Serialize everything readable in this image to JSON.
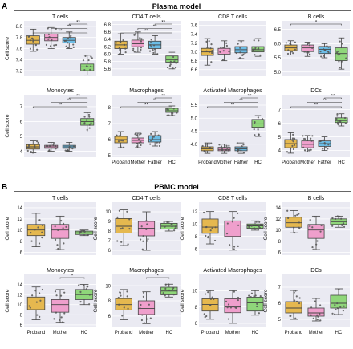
{
  "panels": [
    {
      "letter": "A",
      "title": "Plasma model"
    },
    {
      "letter": "B",
      "title": "PBMC model"
    }
  ],
  "colors": {
    "Proband": "#e5b84f",
    "Mother": "#ef9fcc",
    "Father": "#6cbde6",
    "HC": "#8fd67a",
    "panel_bg": "#eaeaf2",
    "grid": "#ffffff"
  },
  "chart_data": [
    {
      "type": "box",
      "panel": "A",
      "title": "T cells",
      "categories": [
        "Proband",
        "Mother",
        "Father",
        "HC"
      ],
      "ylabel": "Cell score",
      "ylim": [
        7.1,
        8.1
      ],
      "yticks": [
        "7.2",
        "7.4",
        "7.6",
        "7.8",
        "8.0"
      ],
      "show_xticklabels": false,
      "boxes": [
        {
          "category": "Proband",
          "min": 7.55,
          "q1": 7.68,
          "median": 7.75,
          "q3": 7.83,
          "max": 7.95
        },
        {
          "category": "Mother",
          "min": 7.6,
          "q1": 7.74,
          "median": 7.8,
          "q3": 7.86,
          "max": 7.98
        },
        {
          "category": "Father",
          "min": 7.6,
          "q1": 7.7,
          "median": 7.75,
          "q3": 7.8,
          "max": 7.9
        },
        {
          "category": "HC",
          "min": 7.12,
          "q1": 7.2,
          "median": 7.27,
          "q3": 7.32,
          "max": 7.48
        }
      ],
      "significance": [
        {
          "from": "Proband",
          "to": "HC",
          "label": "**"
        },
        {
          "from": "Mother",
          "to": "HC",
          "label": "**"
        },
        {
          "from": "Father",
          "to": "HC",
          "label": "**"
        }
      ]
    },
    {
      "type": "box",
      "panel": "A",
      "title": "CD4 T cells",
      "categories": [
        "Proband",
        "Mother",
        "Father",
        "HC"
      ],
      "ylabel": "",
      "ylim": [
        5.4,
        6.9
      ],
      "yticks": [
        "5.6",
        "5.8",
        "6.0",
        "6.2",
        "6.4",
        "6.6",
        "6.8"
      ],
      "show_xticklabels": false,
      "boxes": [
        {
          "category": "Proband",
          "min": 6.0,
          "q1": 6.15,
          "median": 6.25,
          "q3": 6.35,
          "max": 6.55
        },
        {
          "category": "Mother",
          "min": 6.05,
          "q1": 6.2,
          "median": 6.28,
          "q3": 6.38,
          "max": 6.6
        },
        {
          "category": "Father",
          "min": 6.0,
          "q1": 6.15,
          "median": 6.25,
          "q3": 6.35,
          "max": 6.5
        },
        {
          "category": "HC",
          "min": 5.6,
          "q1": 5.78,
          "median": 5.85,
          "q3": 5.95,
          "max": 6.05
        }
      ],
      "significance": [
        {
          "from": "Proband",
          "to": "HC",
          "label": "**"
        },
        {
          "from": "Mother",
          "to": "HC",
          "label": "**"
        },
        {
          "from": "Father",
          "to": "HC",
          "label": "**"
        }
      ]
    },
    {
      "type": "box",
      "panel": "A",
      "title": "CD8 T cells",
      "categories": [
        "Proband",
        "Mother",
        "Father",
        "HC"
      ],
      "ylabel": "",
      "ylim": [
        6.45,
        7.7
      ],
      "yticks": [
        "6.6",
        "6.8",
        "7.0",
        "7.2",
        "7.4",
        "7.6"
      ],
      "show_xticklabels": false,
      "boxes": [
        {
          "category": "Proband",
          "min": 6.7,
          "q1": 6.92,
          "median": 7.0,
          "q3": 7.08,
          "max": 7.3
        },
        {
          "category": "Mother",
          "min": 6.8,
          "q1": 6.95,
          "median": 7.02,
          "q3": 7.08,
          "max": 7.25
        },
        {
          "category": "Father",
          "min": 6.85,
          "q1": 6.98,
          "median": 7.05,
          "q3": 7.12,
          "max": 7.25
        },
        {
          "category": "HC",
          "min": 6.9,
          "q1": 7.0,
          "median": 7.05,
          "q3": 7.12,
          "max": 7.3
        }
      ],
      "significance": []
    },
    {
      "type": "box",
      "panel": "A",
      "title": "B cells",
      "categories": [
        "Proband",
        "Mother",
        "Father",
        "HC"
      ],
      "ylabel": "",
      "ylim": [
        4.85,
        6.8
      ],
      "yticks": [
        "5.0",
        "5.5",
        "6.0",
        "6.5"
      ],
      "show_xticklabels": false,
      "boxes": [
        {
          "category": "Proband",
          "min": 5.6,
          "q1": 5.75,
          "median": 5.85,
          "q3": 5.95,
          "max": 6.1
        },
        {
          "category": "Mother",
          "min": 5.55,
          "q1": 5.72,
          "median": 5.85,
          "q3": 5.95,
          "max": 6.05
        },
        {
          "category": "Father",
          "min": 5.5,
          "q1": 5.65,
          "median": 5.8,
          "q3": 5.9,
          "max": 6.0
        },
        {
          "category": "HC",
          "min": 5.1,
          "q1": 5.4,
          "median": 5.65,
          "q3": 5.85,
          "max": 6.2
        }
      ],
      "significance": [
        {
          "from": "Proband",
          "to": "HC",
          "label": "*"
        }
      ]
    },
    {
      "type": "box",
      "panel": "A",
      "title": "Monocytes",
      "categories": [
        "Proband",
        "Mother",
        "Father",
        "HC"
      ],
      "ylabel": "Cell score",
      "ylim": [
        3.6,
        7.8
      ],
      "yticks": [
        "4",
        "5",
        "6",
        "7"
      ],
      "show_xticklabels": false,
      "boxes": [
        {
          "category": "Proband",
          "min": 3.9,
          "q1": 4.15,
          "median": 4.3,
          "q3": 4.45,
          "max": 4.7
        },
        {
          "category": "Mother",
          "min": 4.0,
          "q1": 4.2,
          "median": 4.3,
          "q3": 4.4,
          "max": 4.6
        },
        {
          "category": "Father",
          "min": 4.0,
          "q1": 4.2,
          "median": 4.3,
          "q3": 4.4,
          "max": 4.6
        },
        {
          "category": "HC",
          "min": 5.3,
          "q1": 5.75,
          "median": 6.0,
          "q3": 6.2,
          "max": 6.6
        }
      ],
      "significance": [
        {
          "from": "Proband",
          "to": "HC",
          "label": "**"
        },
        {
          "from": "Mother",
          "to": "HC",
          "label": "**"
        },
        {
          "from": "Father",
          "to": "HC",
          "label": "**"
        }
      ]
    },
    {
      "type": "box",
      "panel": "A",
      "title": "Macrophages",
      "categories": [
        "Proband",
        "Mother",
        "Father",
        "HC"
      ],
      "ylabel": "",
      "ylim": [
        4.9,
        8.8
      ],
      "yticks": [
        "5",
        "6",
        "7",
        "8"
      ],
      "show_xticklabels": true,
      "boxes": [
        {
          "category": "Proband",
          "min": 5.5,
          "q1": 5.8,
          "median": 6.0,
          "q3": 6.2,
          "max": 6.5
        },
        {
          "category": "Mother",
          "min": 5.5,
          "q1": 5.8,
          "median": 5.95,
          "q3": 6.1,
          "max": 6.4
        },
        {
          "category": "Father",
          "min": 5.6,
          "q1": 5.85,
          "median": 6.0,
          "q3": 6.25,
          "max": 6.5
        },
        {
          "category": "HC",
          "min": 7.5,
          "q1": 7.7,
          "median": 7.8,
          "q3": 7.95,
          "max": 8.1
        }
      ],
      "significance": [
        {
          "from": "Proband",
          "to": "HC",
          "label": "**"
        },
        {
          "from": "Mother",
          "to": "HC",
          "label": "**"
        },
        {
          "from": "Father",
          "to": "HC",
          "label": "**"
        }
      ]
    },
    {
      "type": "box",
      "panel": "A",
      "title": "Activated Macrophages",
      "categories": [
        "Proband",
        "Mother",
        "Father",
        "HC"
      ],
      "ylabel": "",
      "ylim": [
        3.5,
        5.9
      ],
      "yticks": [
        "4.0",
        "4.5",
        "5.0",
        "5.5"
      ],
      "show_xticklabels": true,
      "boxes": [
        {
          "category": "Proband",
          "min": 3.65,
          "q1": 3.75,
          "median": 3.82,
          "q3": 3.9,
          "max": 4.05
        },
        {
          "category": "Mother",
          "min": 3.65,
          "q1": 3.75,
          "median": 3.8,
          "q3": 3.88,
          "max": 4.0
        },
        {
          "category": "Father",
          "min": 3.65,
          "q1": 3.75,
          "median": 3.82,
          "q3": 3.9,
          "max": 4.05
        },
        {
          "category": "HC",
          "min": 4.3,
          "q1": 4.65,
          "median": 4.78,
          "q3": 4.95,
          "max": 5.1
        }
      ],
      "significance": [
        {
          "from": "Proband",
          "to": "HC",
          "label": "**"
        },
        {
          "from": "Mother",
          "to": "HC",
          "label": "**"
        },
        {
          "from": "Father",
          "to": "HC",
          "label": "**"
        }
      ]
    },
    {
      "type": "box",
      "panel": "A",
      "title": "DCs",
      "categories": [
        "Proband",
        "Mother",
        "Father",
        "HC"
      ],
      "ylabel": "",
      "ylim": [
        3.5,
        8.1
      ],
      "yticks": [
        "4",
        "5",
        "6",
        "7"
      ],
      "show_xticklabels": true,
      "boxes": [
        {
          "category": "Proband",
          "min": 3.8,
          "q1": 4.2,
          "median": 4.5,
          "q3": 4.8,
          "max": 5.3
        },
        {
          "category": "Mother",
          "min": 3.9,
          "q1": 4.2,
          "median": 4.45,
          "q3": 4.7,
          "max": 5.1
        },
        {
          "category": "Father",
          "min": 4.0,
          "q1": 4.3,
          "median": 4.5,
          "q3": 4.7,
          "max": 5.0
        },
        {
          "category": "HC",
          "min": 5.8,
          "q1": 6.05,
          "median": 6.2,
          "q3": 6.4,
          "max": 6.7
        }
      ],
      "significance": [
        {
          "from": "Proband",
          "to": "HC",
          "label": "**"
        },
        {
          "from": "Mother",
          "to": "HC",
          "label": "**"
        },
        {
          "from": "Father",
          "to": "HC",
          "label": "**"
        }
      ]
    },
    {
      "type": "box",
      "panel": "B",
      "title": "T cells",
      "categories": [
        "Proband",
        "Mother",
        "HC"
      ],
      "ylabel": "Cell score",
      "ylim": [
        5.5,
        15
      ],
      "yticks": [
        "6",
        "8",
        "10",
        "12",
        "14"
      ],
      "show_xticklabels": false,
      "boxes": [
        {
          "category": "Proband",
          "min": 7.0,
          "q1": 9.0,
          "median": 10.0,
          "q3": 11.0,
          "max": 13.0
        },
        {
          "category": "Mother",
          "min": 6.5,
          "q1": 8.5,
          "median": 10.0,
          "q3": 11.0,
          "max": 12.5
        },
        {
          "category": "HC",
          "min": 9.0,
          "q1": 9.2,
          "median": 9.5,
          "q3": 9.8,
          "max": 10.0
        }
      ],
      "significance": []
    },
    {
      "type": "box",
      "panel": "B",
      "title": "CD4 T cells",
      "categories": [
        "Proband",
        "Mother",
        "HC"
      ],
      "ylabel": "Cell score",
      "ylim": [
        5.5,
        11
      ],
      "yticks": [
        "6",
        "7",
        "8",
        "9",
        "10"
      ],
      "show_xticklabels": false,
      "boxes": [
        {
          "category": "Proband",
          "min": 6.5,
          "q1": 7.8,
          "median": 8.5,
          "q3": 9.3,
          "max": 10.2
        },
        {
          "category": "Mother",
          "min": 6.0,
          "q1": 7.5,
          "median": 8.3,
          "q3": 9.0,
          "max": 10.0
        },
        {
          "category": "HC",
          "min": 8.0,
          "q1": 8.2,
          "median": 8.5,
          "q3": 8.8,
          "max": 9.0
        }
      ],
      "significance": []
    },
    {
      "type": "box",
      "panel": "B",
      "title": "CD8 T cells",
      "categories": [
        "Proband",
        "Mother",
        "HC"
      ],
      "ylabel": "Cell score",
      "ylim": [
        5,
        13.5
      ],
      "yticks": [
        "6",
        "8",
        "10",
        "12"
      ],
      "show_xticklabels": false,
      "boxes": [
        {
          "category": "Proband",
          "min": 6.8,
          "q1": 8.5,
          "median": 9.5,
          "q3": 10.8,
          "max": 12.0
        },
        {
          "category": "Mother",
          "min": 5.8,
          "q1": 8.0,
          "median": 9.2,
          "q3": 10.5,
          "max": 12.0
        },
        {
          "category": "HC",
          "min": 9.0,
          "q1": 9.3,
          "median": 9.7,
          "q3": 10.0,
          "max": 10.5
        }
      ],
      "significance": []
    },
    {
      "type": "box",
      "panel": "B",
      "title": "B cells",
      "categories": [
        "Proband",
        "Mother",
        "HC"
      ],
      "ylabel": "Cell score",
      "ylim": [
        5.5,
        15
      ],
      "yticks": [
        "6",
        "8",
        "10",
        "12",
        "14"
      ],
      "show_xticklabels": false,
      "boxes": [
        {
          "category": "Proband",
          "min": 9.5,
          "q1": 10.5,
          "median": 11.3,
          "q3": 12.3,
          "max": 13.5
        },
        {
          "category": "Mother",
          "min": 6.5,
          "q1": 8.5,
          "median": 10.0,
          "q3": 11.0,
          "max": 12.5
        },
        {
          "category": "HC",
          "min": 10.5,
          "q1": 11.0,
          "median": 11.5,
          "q3": 12.0,
          "max": 12.5
        }
      ],
      "significance": []
    },
    {
      "type": "box",
      "panel": "B",
      "title": "Monocytes",
      "categories": [
        "Proband",
        "Mother",
        "HC"
      ],
      "ylabel": "Cell score",
      "ylim": [
        5.5,
        16
      ],
      "yticks": [
        "6",
        "8",
        "10",
        "12",
        "14"
      ],
      "show_xticklabels": true,
      "boxes": [
        {
          "category": "Proband",
          "min": 7.0,
          "q1": 9.0,
          "median": 10.5,
          "q3": 11.5,
          "max": 13.5
        },
        {
          "category": "Mother",
          "min": 6.5,
          "q1": 8.5,
          "median": 10.0,
          "q3": 11.0,
          "max": 13.0
        },
        {
          "category": "HC",
          "min": 10.0,
          "q1": 11.0,
          "median": 12.0,
          "q3": 13.0,
          "max": 14.0
        }
      ],
      "significance": [
        {
          "from": "Mother",
          "to": "HC",
          "label": "*"
        }
      ]
    },
    {
      "type": "box",
      "panel": "B",
      "title": "Macrophages",
      "categories": [
        "Proband",
        "Mother",
        "HC"
      ],
      "ylabel": "Cell score",
      "ylim": [
        4.5,
        11.5
      ],
      "yticks": [
        "6",
        "8",
        "10"
      ],
      "show_xticklabels": true,
      "boxes": [
        {
          "category": "Proband",
          "min": 5.5,
          "q1": 6.8,
          "median": 7.5,
          "q3": 8.3,
          "max": 9.5
        },
        {
          "category": "Mother",
          "min": 5.0,
          "q1": 6.2,
          "median": 7.0,
          "q3": 8.0,
          "max": 9.2
        },
        {
          "category": "HC",
          "min": 8.5,
          "q1": 8.8,
          "median": 9.3,
          "q3": 9.8,
          "max": 10.2
        }
      ],
      "significance": [
        {
          "from": "Mother",
          "to": "HC",
          "label": "*"
        }
      ]
    },
    {
      "type": "box",
      "panel": "B",
      "title": "Activated Macrophages",
      "categories": [
        "Proband",
        "Mother",
        "HC"
      ],
      "ylabel": "Cell score",
      "ylim": [
        5.5,
        12
      ],
      "yticks": [
        "6",
        "8",
        "10"
      ],
      "show_xticklabels": true,
      "boxes": [
        {
          "category": "Proband",
          "min": 6.5,
          "q1": 7.5,
          "median": 8.3,
          "q3": 9.0,
          "max": 10.0
        },
        {
          "category": "Mother",
          "min": 6.0,
          "q1": 7.3,
          "median": 8.0,
          "q3": 9.0,
          "max": 10.0
        },
        {
          "category": "HC",
          "min": 7.0,
          "q1": 7.5,
          "median": 8.5,
          "q3": 9.2,
          "max": 10.0
        }
      ],
      "significance": []
    },
    {
      "type": "box",
      "panel": "B",
      "title": "DCs",
      "categories": [
        "Proband",
        "Mother",
        "HC"
      ],
      "ylabel": "Cell score",
      "ylim": [
        4.5,
        7.8
      ],
      "yticks": [
        "5",
        "6",
        "7"
      ],
      "show_xticklabels": true,
      "boxes": [
        {
          "category": "Proband",
          "min": 5.0,
          "q1": 5.4,
          "median": 5.7,
          "q3": 6.1,
          "max": 6.8
        },
        {
          "category": "Mother",
          "min": 4.9,
          "q1": 5.2,
          "median": 5.4,
          "q3": 5.7,
          "max": 6.3
        },
        {
          "category": "HC",
          "min": 5.3,
          "q1": 5.7,
          "median": 6.0,
          "q3": 6.5,
          "max": 6.9
        }
      ],
      "significance": []
    }
  ]
}
